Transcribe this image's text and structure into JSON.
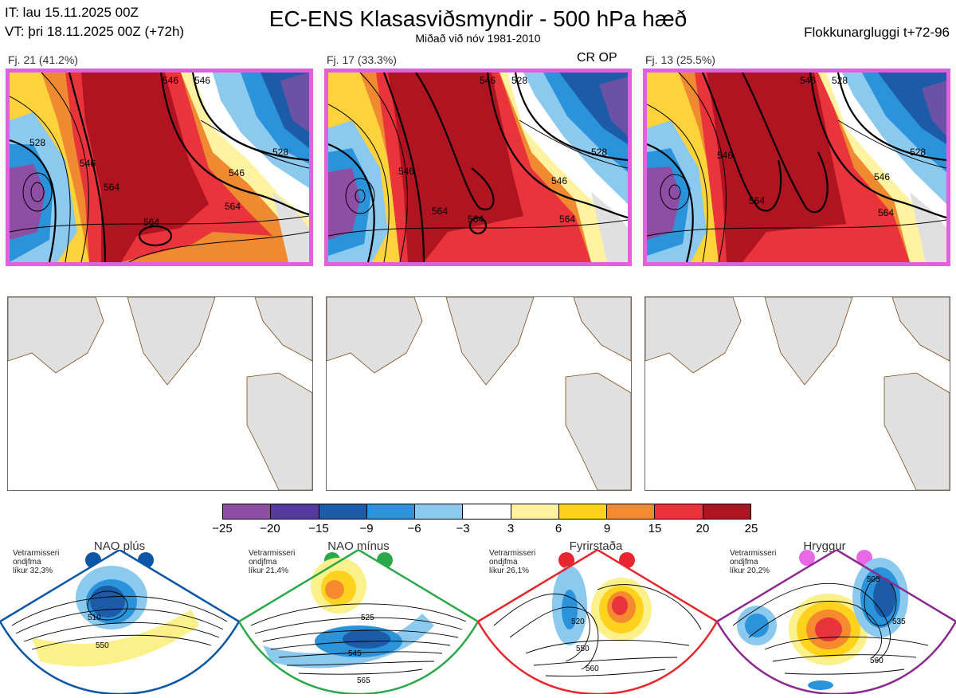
{
  "header": {
    "it": "IT: lau 15.11.2025 00Z",
    "vt": "VT: þri 18.11.2025 00Z  (+72h)",
    "title": "EC-ENS Klasasviðsmyndir - 500 hPa hæð",
    "subtitle": "Miðað við nóv 1981-2010",
    "window": "Flokkunargluggi t+72-96"
  },
  "panels": [
    {
      "label": "Fj. 21 (41.2%)",
      "tag": "",
      "contours": [
        "528",
        "546",
        "564",
        "564",
        "546",
        "528",
        "546",
        "564",
        "546"
      ]
    },
    {
      "label": "Fj. 17 (33.3%)",
      "tag": "CR OP",
      "contours": [
        "546",
        "528",
        "546",
        "564",
        "564",
        "546",
        "564",
        "528"
      ]
    },
    {
      "label": "Fj. 13 (25.5%)",
      "tag": "",
      "contours": [
        "546",
        "528",
        "546",
        "564",
        "546",
        "564",
        "528"
      ]
    }
  ],
  "colorbar": {
    "colors": [
      "#8e4ea3",
      "#553b9e",
      "#1b5ba8",
      "#2b93d9",
      "#8cc9ef",
      "#ffffff",
      "#fff2a0",
      "#ffd21d",
      "#f58a2e",
      "#e8343a",
      "#b01420"
    ],
    "ticks": [
      "−25",
      "−20",
      "−15",
      "−9",
      "−6",
      "−3",
      "3",
      "6",
      "9",
      "15",
      "20",
      "25"
    ]
  },
  "clusters": [
    {
      "name": "NAO plús",
      "info": [
        "Vetrarmisseri",
        "ondjfma",
        "líkur 32,3%"
      ],
      "color": "#0b57a6",
      "labels": [
        "510",
        "550"
      ]
    },
    {
      "name": "NAO mínus",
      "info": [
        "Vetrarmisseri",
        "ondjfma",
        "líkur 21,4%"
      ],
      "color": "#2aa84a",
      "labels": [
        "525",
        "545",
        "565"
      ]
    },
    {
      "name": "Fyrirstaða",
      "info": [
        "Vetrarmisseri",
        "ondjfma",
        "líkur 26,1%"
      ],
      "color": "#e8262e",
      "labels": [
        "520",
        "550",
        "560"
      ]
    },
    {
      "name": "Hryggur",
      "info": [
        "Vetrarmisseri",
        "ondjfma",
        "líkur 20,2%"
      ],
      "color": "#8b2a8f",
      "labels": [
        "505",
        "535",
        "560"
      ]
    }
  ]
}
